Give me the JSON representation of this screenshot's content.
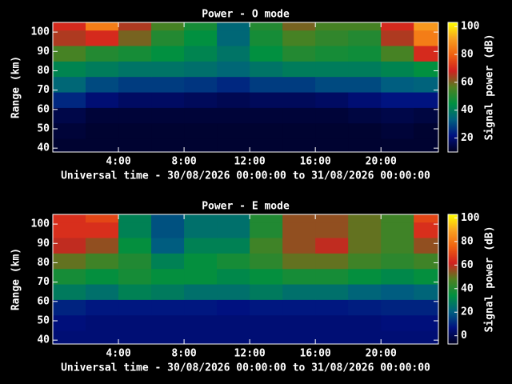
{
  "chart_data": [
    {
      "type": "heatmap",
      "title": "Power - O mode",
      "xlabel": "Universal time - 30/08/2026 00:00:00 to 31/08/2026 00:00:00",
      "ylabel": "Range (km)",
      "x": [
        1,
        3,
        5,
        7,
        9,
        11,
        13,
        15,
        17,
        19,
        21,
        23
      ],
      "y": [
        41,
        49,
        57,
        65,
        73,
        81,
        89,
        97,
        105
      ],
      "z": [
        [
          12,
          12,
          12,
          12,
          12,
          12,
          12,
          12,
          12,
          12,
          12,
          12
        ],
        [
          13,
          12,
          12,
          12,
          12,
          12,
          12,
          12,
          12,
          12,
          13,
          12
        ],
        [
          15,
          13,
          13,
          13,
          13,
          13,
          13,
          13,
          13,
          14,
          15,
          14
        ],
        [
          25,
          20,
          18,
          18,
          17,
          16,
          17,
          17,
          18,
          20,
          22,
          22
        ],
        [
          35,
          30,
          28,
          28,
          27,
          25,
          28,
          28,
          30,
          30,
          33,
          34
        ],
        [
          42,
          40,
          38,
          38,
          37,
          35,
          38,
          40,
          40,
          40,
          42,
          45
        ],
        [
          55,
          50,
          48,
          45,
          42,
          38,
          45,
          50,
          48,
          47,
          55,
          70
        ],
        [
          65,
          70,
          60,
          50,
          45,
          35,
          48,
          55,
          52,
          50,
          65,
          85
        ],
        [
          70,
          85,
          65,
          55,
          48,
          35,
          50,
          60,
          55,
          55,
          70,
          90
        ]
      ],
      "xlim": [
        0,
        23.5
      ],
      "ylim": [
        38,
        105
      ],
      "xticks": [
        {
          "value": 4,
          "label": "4:00"
        },
        {
          "value": 8,
          "label": "8:00"
        },
        {
          "value": 12,
          "label": "12:00"
        },
        {
          "value": 16,
          "label": "16:00"
        },
        {
          "value": 20,
          "label": "20:00"
        }
      ],
      "yticks": [
        40,
        50,
        60,
        70,
        80,
        90,
        100
      ],
      "colormap": [
        "#000020",
        "#001080",
        "#006080",
        "#009040",
        "#508020",
        "#d02020",
        "#f06010",
        "#f8a020",
        "#ffff00"
      ],
      "colorbar": {
        "label": "Signal power (dB)",
        "clim": [
          10,
          103
        ],
        "ticks": [
          20,
          40,
          60,
          80,
          100
        ]
      }
    },
    {
      "type": "heatmap",
      "title": "Power - E mode",
      "xlabel": "Universal time - 30/08/2026 00:00:00 to 31/08/2026 00:00:00",
      "ylabel": "Range (km)",
      "x": [
        1,
        3,
        5,
        7,
        9,
        11,
        13,
        15,
        17,
        19,
        21,
        23
      ],
      "y": [
        41,
        49,
        57,
        65,
        73,
        81,
        89,
        97,
        105
      ],
      "z": [
        [
          5,
          5,
          5,
          5,
          5,
          5,
          5,
          5,
          5,
          5,
          5,
          5
        ],
        [
          6,
          5,
          5,
          5,
          5,
          5,
          5,
          5,
          5,
          5,
          6,
          6
        ],
        [
          10,
          8,
          8,
          8,
          8,
          7,
          8,
          8,
          8,
          9,
          10,
          10
        ],
        [
          28,
          25,
          30,
          28,
          25,
          25,
          28,
          25,
          25,
          22,
          20,
          22
        ],
        [
          38,
          35,
          38,
          35,
          35,
          32,
          35,
          38,
          38,
          35,
          32,
          35
        ],
        [
          50,
          45,
          40,
          30,
          35,
          38,
          42,
          50,
          50,
          45,
          42,
          45
        ],
        [
          60,
          55,
          35,
          20,
          30,
          30,
          45,
          55,
          60,
          50,
          45,
          55
        ],
        [
          65,
          65,
          30,
          18,
          25,
          25,
          40,
          55,
          55,
          50,
          45,
          65
        ],
        [
          65,
          70,
          30,
          18,
          25,
          25,
          40,
          55,
          55,
          50,
          45,
          70
        ]
      ],
      "xlim": [
        0,
        23.5
      ],
      "ylim": [
        38,
        105
      ],
      "xticks": [
        {
          "value": 4,
          "label": "4:00"
        },
        {
          "value": 8,
          "label": "8:00"
        },
        {
          "value": 12,
          "label": "12:00"
        },
        {
          "value": 16,
          "label": "16:00"
        },
        {
          "value": 20,
          "label": "20:00"
        }
      ],
      "yticks": [
        40,
        50,
        60,
        70,
        80,
        90,
        100
      ],
      "colormap": [
        "#000020",
        "#001080",
        "#006080",
        "#009040",
        "#508020",
        "#d02020",
        "#f06010",
        "#f8a020",
        "#ffff00"
      ],
      "colorbar": {
        "label": "Signal power (dB)",
        "clim": [
          -7,
          103
        ],
        "ticks": [
          0,
          20,
          40,
          60,
          80,
          100
        ]
      }
    }
  ]
}
